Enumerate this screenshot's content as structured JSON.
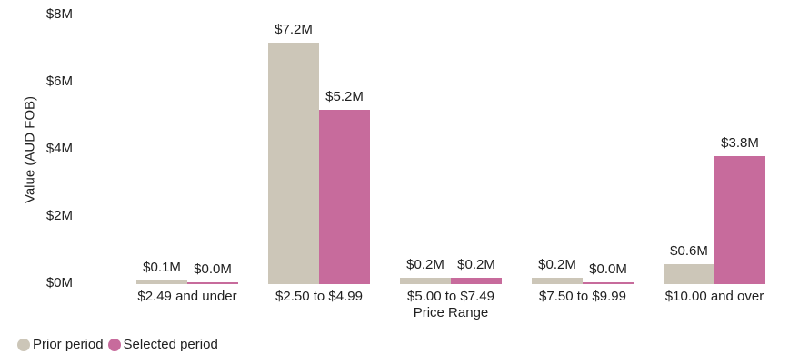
{
  "chart_data": {
    "type": "bar",
    "title": "",
    "categories": [
      "$2.49 and under",
      "$2.50 to $4.99",
      "$5.00 to $7.49",
      "$7.50 to $9.99",
      "$10.00 and over"
    ],
    "series": [
      {
        "name": "Prior period",
        "color": "#ccc6b8",
        "values": [
          0.1,
          7.2,
          0.2,
          0.2,
          0.6
        ],
        "value_labels": [
          "$0.1M",
          "$7.2M",
          "$0.2M",
          "$0.2M",
          "$0.6M"
        ]
      },
      {
        "name": "Selected period",
        "color": "#c76b9c",
        "values": [
          0.0,
          5.2,
          0.2,
          0.0,
          3.8
        ],
        "value_labels": [
          "$0.0M",
          "$5.2M",
          "$0.2M",
          "$0.0M",
          "$3.8M"
        ]
      }
    ],
    "xlabel": "Price Range",
    "ylabel": "Value (AUD FOB)",
    "yticks": {
      "labels": [
        "$0M",
        "$2M",
        "$4M",
        "$6M",
        "$8M"
      ],
      "values": [
        0,
        2,
        4,
        6,
        8
      ]
    },
    "ylim": [
      0,
      8
    ],
    "grid": false,
    "legend_position": "bottom-left"
  },
  "text_color": "#202020"
}
